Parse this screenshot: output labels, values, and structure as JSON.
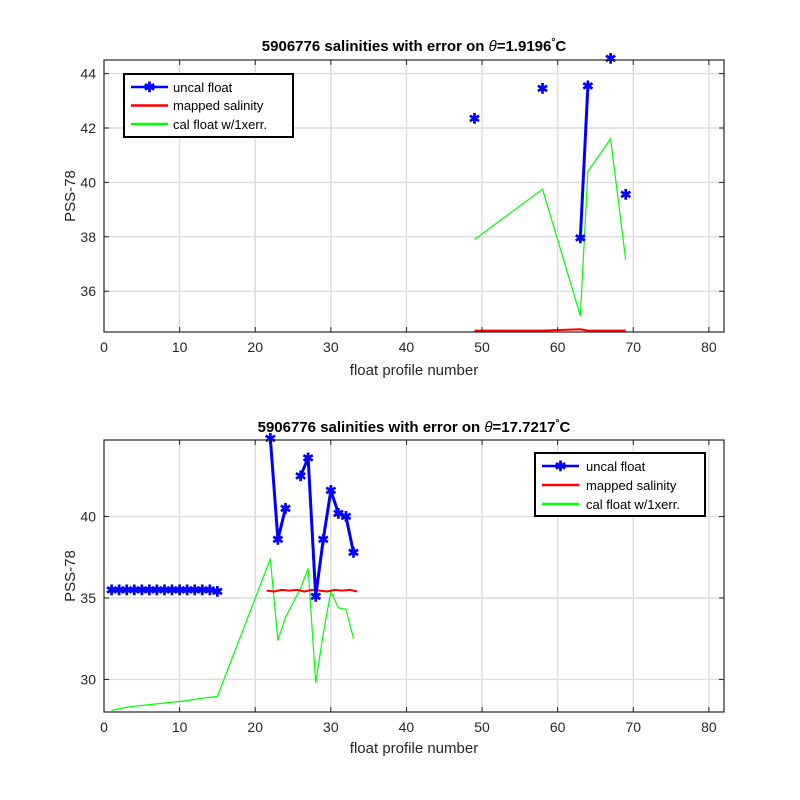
{
  "colors": {
    "uncal": "#0000ff",
    "mapped": "#ff0000",
    "cal": "#00ff00"
  },
  "chart_data": [
    {
      "type": "line",
      "title_prefix": "5906776 salinities with error on ",
      "title_theta": "θ",
      "title_value": "=1.9196",
      "title_degree": "°",
      "title_unit": "C",
      "xlabel": "float profile number",
      "ylabel": "PSS-78",
      "xlim": [
        0,
        82
      ],
      "ylim": [
        34.5,
        44.5
      ],
      "xticks": [
        0,
        10,
        20,
        30,
        40,
        50,
        60,
        70,
        80
      ],
      "yticks": [
        36,
        38,
        40,
        42,
        44
      ],
      "grid": true,
      "legend_position": "top-left",
      "series": [
        {
          "name": "uncal float",
          "style": "line-markers",
          "segments": [
            [
              [
                49,
                42.35
              ]
            ],
            [
              [
                58,
                43.45
              ]
            ],
            [
              [
                63,
                37.95
              ],
              [
                64,
                43.55
              ]
            ],
            [
              [
                67,
                44.55
              ]
            ],
            [
              [
                69,
                39.55
              ]
            ]
          ]
        },
        {
          "name": "mapped salinity",
          "style": "line",
          "segments": [
            [
              [
                49,
                34.55
              ],
              [
                58,
                34.55
              ],
              [
                63,
                34.6
              ],
              [
                64,
                34.55
              ],
              [
                67,
                34.55
              ],
              [
                69,
                34.55
              ]
            ]
          ]
        },
        {
          "name": "cal float w/1xerr.",
          "style": "line-thin",
          "segments": [
            [
              [
                49,
                37.9
              ],
              [
                58,
                39.75
              ],
              [
                63,
                35.1
              ],
              [
                64,
                40.4
              ],
              [
                67,
                41.6
              ],
              [
                69,
                37.15
              ]
            ]
          ]
        }
      ]
    },
    {
      "type": "line",
      "title_prefix": "5906776 salinities with error on ",
      "title_theta": "θ",
      "title_value": "=17.7217",
      "title_degree": "°",
      "title_unit": "C",
      "xlabel": "float profile number",
      "ylabel": "PSS-78",
      "xlim": [
        0,
        82
      ],
      "ylim": [
        28,
        44.7
      ],
      "xticks": [
        0,
        10,
        20,
        30,
        40,
        50,
        60,
        70,
        80
      ],
      "yticks": [
        30,
        35,
        40
      ],
      "grid": true,
      "legend_position": "top-right",
      "series": [
        {
          "name": "uncal float",
          "style": "line-markers",
          "segments": [
            [
              [
                1,
                35.5
              ],
              [
                2,
                35.5
              ],
              [
                3,
                35.5
              ],
              [
                4,
                35.5
              ],
              [
                5,
                35.5
              ],
              [
                6,
                35.5
              ],
              [
                7,
                35.5
              ],
              [
                8,
                35.5
              ],
              [
                9,
                35.5
              ],
              [
                10,
                35.5
              ],
              [
                11,
                35.5
              ],
              [
                12,
                35.5
              ],
              [
                13,
                35.5
              ],
              [
                14,
                35.5
              ],
              [
                15,
                35.4
              ]
            ],
            [
              [
                22,
                44.8
              ],
              [
                23,
                38.6
              ],
              [
                24,
                40.5
              ]
            ],
            [
              [
                26,
                42.5
              ],
              [
                27,
                43.6
              ],
              [
                28,
                35.1
              ],
              [
                29,
                38.6
              ],
              [
                30,
                41.6
              ],
              [
                31,
                40.2
              ],
              [
                32,
                40.0
              ],
              [
                33,
                37.8
              ]
            ]
          ]
        },
        {
          "name": "mapped salinity",
          "style": "line",
          "segments": [
            [
              [
                21.5,
                35.45
              ],
              [
                22.5,
                35.4
              ],
              [
                23.5,
                35.5
              ],
              [
                24.5,
                35.45
              ],
              [
                25.5,
                35.5
              ],
              [
                26.5,
                35.4
              ],
              [
                27.5,
                35.5
              ],
              [
                28.5,
                35.45
              ],
              [
                29.5,
                35.4
              ],
              [
                30.5,
                35.5
              ],
              [
                31.5,
                35.45
              ],
              [
                32.5,
                35.5
              ],
              [
                33.5,
                35.4
              ]
            ]
          ]
        },
        {
          "name": "cal float w/1xerr.",
          "style": "line-thin",
          "segments": [
            [
              [
                1,
                28.1
              ],
              [
                3,
                28.3
              ],
              [
                5,
                28.4
              ],
              [
                7,
                28.5
              ],
              [
                9,
                28.6
              ],
              [
                11,
                28.7
              ],
              [
                13,
                28.85
              ],
              [
                15,
                28.95
              ],
              [
                22,
                37.4
              ],
              [
                23,
                32.4
              ],
              [
                24,
                33.8
              ],
              [
                26,
                35.6
              ],
              [
                27,
                36.8
              ],
              [
                28,
                29.8
              ],
              [
                29,
                32.8
              ],
              [
                30,
                35.4
              ],
              [
                31,
                34.4
              ],
              [
                32,
                34.3
              ],
              [
                33,
                32.5
              ]
            ]
          ]
        }
      ]
    }
  ]
}
